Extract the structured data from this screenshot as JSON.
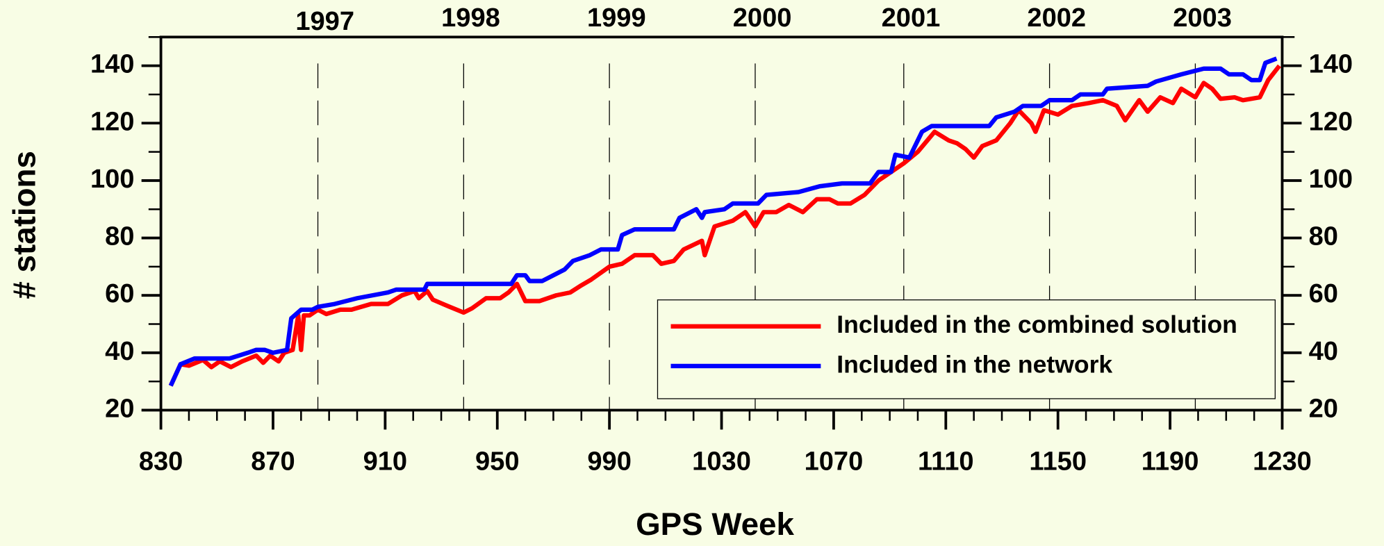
{
  "chart_data": {
    "type": "line",
    "x_label": "GPS Week",
    "y_label": "# stations",
    "xlim": [
      830,
      1230
    ],
    "ylim": [
      20,
      150
    ],
    "xticks": [
      830,
      870,
      910,
      950,
      990,
      1030,
      1070,
      1110,
      1150,
      1190,
      1230
    ],
    "xticks_minor": [
      840,
      850,
      860,
      880,
      890,
      900,
      920,
      930,
      940,
      960,
      970,
      980,
      1000,
      1010,
      1020,
      1040,
      1050,
      1060,
      1080,
      1090,
      1100,
      1120,
      1130,
      1140,
      1160,
      1170,
      1180,
      1200,
      1210,
      1220
    ],
    "yticks": [
      20,
      40,
      60,
      80,
      100,
      120,
      140
    ],
    "yticks_minor": [
      30,
      50,
      70,
      90,
      110,
      130,
      150
    ],
    "x2ticks": [
      {
        "value": 886,
        "label": "1997"
      },
      {
        "value": 938,
        "label": "1998"
      },
      {
        "value": 990,
        "label": "1999"
      },
      {
        "value": 1042,
        "label": "2000"
      },
      {
        "value": 1095,
        "label": "2001"
      },
      {
        "value": 1147,
        "label": "2002"
      },
      {
        "value": 1199,
        "label": "2003"
      }
    ],
    "legend": "lower right",
    "series": [
      {
        "name": "Included in the combined solution",
        "color": "#ff0000",
        "x": [
          833.5,
          837,
          840,
          845,
          848,
          851,
          855,
          859,
          864,
          866.5,
          869,
          872,
          874,
          877,
          879,
          880,
          881,
          883,
          886,
          889,
          894,
          898,
          905,
          911,
          916,
          920.5,
          922,
          925,
          927,
          933,
          938,
          941,
          946,
          951,
          954,
          957,
          960,
          965,
          971,
          976,
          980,
          983.5,
          990,
          994.5,
          999,
          1005.5,
          1008.5,
          1013,
          1016.5,
          1023,
          1024,
          1027.5,
          1034,
          1038.5,
          1042,
          1045,
          1049.5,
          1054,
          1059,
          1064,
          1068.5,
          1071.5,
          1076,
          1081,
          1086,
          1090.5,
          1095,
          1100,
          1106,
          1111,
          1114,
          1117,
          1120,
          1123,
          1128,
          1133,
          1136,
          1140.5,
          1142,
          1145,
          1150,
          1155,
          1161,
          1166,
          1171,
          1174,
          1179,
          1182,
          1186.5,
          1191,
          1194,
          1199,
          1202,
          1205,
          1208,
          1213,
          1216,
          1222,
          1225,
          1229
        ],
        "values": [
          28.5,
          36,
          35.5,
          37.5,
          35,
          37,
          35,
          37,
          39,
          36.5,
          39,
          37,
          40,
          41,
          53,
          41,
          53,
          53,
          55,
          53.5,
          55,
          55,
          57,
          57,
          60,
          61.5,
          59,
          61.5,
          58.5,
          56,
          54,
          55.5,
          59,
          59,
          61,
          64,
          58,
          58,
          60,
          61,
          63.5,
          65.5,
          70,
          71,
          74,
          74,
          71,
          72,
          76,
          79,
          74,
          84,
          86,
          89,
          84,
          89,
          89,
          91.5,
          89,
          93.5,
          93.5,
          92,
          92,
          95,
          100,
          103,
          106,
          110,
          117,
          114,
          113,
          111,
          108,
          112,
          114,
          120,
          124.5,
          120,
          117,
          124.5,
          123,
          126,
          127,
          128,
          126,
          121,
          128,
          124,
          129,
          127,
          132,
          129,
          134,
          132,
          128.5,
          129,
          128,
          129,
          135,
          140
        ]
      },
      {
        "name": "Included in the network",
        "color": "#0000ff",
        "x": [
          833.5,
          837,
          842,
          854.5,
          861,
          864,
          867,
          870,
          875,
          876.5,
          880,
          884,
          886,
          892,
          900,
          911,
          914,
          924,
          925,
          955,
          957,
          960,
          961.5,
          966,
          968,
          974,
          977,
          983,
          987,
          993,
          994.5,
          999,
          1013,
          1015,
          1021,
          1023,
          1024,
          1031,
          1034,
          1043,
          1046,
          1057.5,
          1065,
          1073,
          1083,
          1086,
          1090.5,
          1092,
          1097,
          1101.5,
          1105,
          1125.5,
          1128,
          1134.5,
          1137.5,
          1144,
          1147,
          1155,
          1158,
          1166,
          1167.5,
          1182,
          1185,
          1194,
          1202,
          1208,
          1211,
          1216,
          1219,
          1222,
          1224,
          1228
        ],
        "values": [
          28.5,
          36,
          38,
          38,
          40,
          41,
          41,
          40,
          41,
          52,
          55,
          55,
          56,
          57,
          59,
          61,
          62,
          62,
          64,
          64,
          67,
          67,
          65,
          65,
          66,
          69,
          72,
          74,
          76,
          76,
          81,
          83,
          83,
          87,
          90,
          87,
          89,
          90,
          92,
          92,
          95,
          96,
          98,
          99,
          99,
          103,
          103,
          109,
          108,
          117,
          119,
          119,
          122,
          124,
          126,
          126,
          128,
          128,
          130,
          130,
          132,
          133,
          134.5,
          137,
          139,
          139,
          137,
          137,
          135,
          135,
          141,
          142.5
        ]
      }
    ]
  }
}
